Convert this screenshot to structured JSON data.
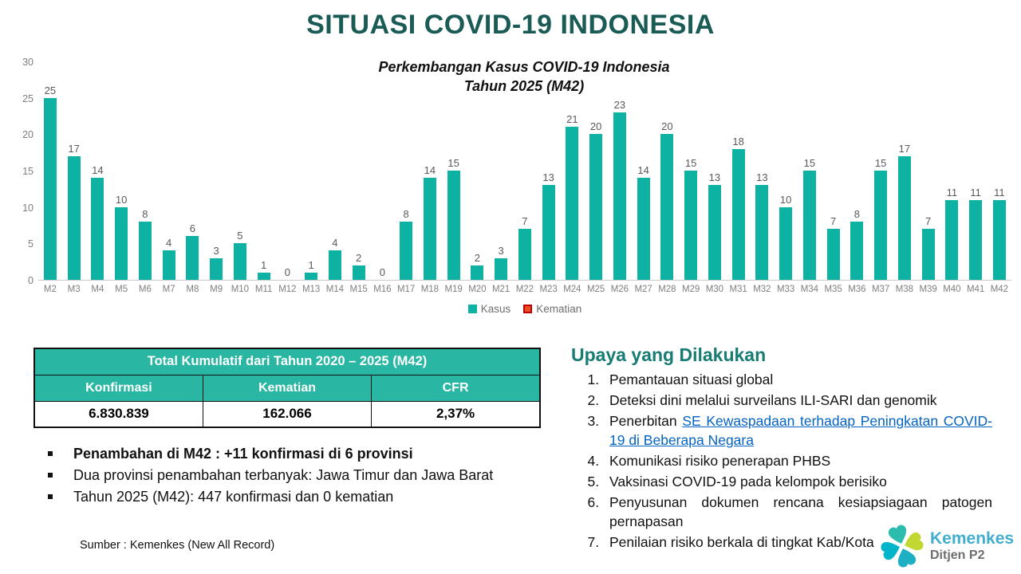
{
  "slide": {
    "title": "SITUASI COVID-19 INDONESIA"
  },
  "chart_data": {
    "type": "bar",
    "title_line1": "Perkembangan Kasus COVID-19 Indonesia",
    "title_line2": "Tahun 2025 (M42)",
    "categories": [
      "M2",
      "M3",
      "M4",
      "M5",
      "M6",
      "M7",
      "M8",
      "M9",
      "M10",
      "M11",
      "M12",
      "M13",
      "M14",
      "M15",
      "M16",
      "M17",
      "M18",
      "M19",
      "M20",
      "M21",
      "M22",
      "M23",
      "M24",
      "M25",
      "M26",
      "M27",
      "M28",
      "M29",
      "M30",
      "M31",
      "M32",
      "M33",
      "M34",
      "M35",
      "M36",
      "M37",
      "M38",
      "M39",
      "M40",
      "M41",
      "M42"
    ],
    "series": [
      {
        "name": "Kasus",
        "color": "#0EB2A2",
        "values": [
          25,
          17,
          14,
          10,
          8,
          4,
          6,
          3,
          5,
          1,
          0,
          1,
          4,
          2,
          0,
          8,
          14,
          15,
          2,
          3,
          7,
          13,
          21,
          20,
          23,
          14,
          20,
          15,
          13,
          18,
          13,
          10,
          15,
          7,
          8,
          15,
          17,
          7,
          11,
          11,
          11
        ]
      },
      {
        "name": "Kematian",
        "color": "#EA4E23",
        "border_color": "#C00000",
        "values": [
          0,
          0,
          0,
          0,
          0,
          0,
          0,
          0,
          0,
          0,
          0,
          0,
          0,
          0,
          0,
          0,
          0,
          0,
          0,
          0,
          0,
          0,
          0,
          0,
          0,
          0,
          0,
          0,
          0,
          0,
          0,
          0,
          0,
          0,
          0,
          0,
          0,
          0,
          0,
          0,
          0
        ]
      }
    ],
    "xlabel": "",
    "ylabel": "",
    "ylim": [
      0,
      30
    ],
    "y_ticks": [
      0,
      5,
      10,
      15,
      20,
      25,
      30
    ],
    "grid": false,
    "legend_position": "bottom"
  },
  "table": {
    "title": "Total Kumulatif dari Tahun 2020 – 2025 (M42)",
    "columns": [
      "Konfirmasi",
      "Kematian",
      "CFR"
    ],
    "values": [
      "6.830.839",
      "162.066",
      "2,37%"
    ]
  },
  "bullets": {
    "items": [
      {
        "text": "Penambahan di M42 : +11 konfirmasi di 6 provinsi",
        "bold": true
      },
      {
        "text": "Dua provinsi penambahan terbanyak: Jawa Timur dan Jawa Barat",
        "bold": false
      },
      {
        "text": "Tahun 2025 (M42): 447 konfirmasi dan 0 kematian",
        "bold": false
      }
    ]
  },
  "source": "Sumber : Kemenkes (New All Record)",
  "upaya": {
    "heading": "Upaya yang Dilakukan",
    "items": [
      {
        "text": "Pemantauan situasi global"
      },
      {
        "text": "Deteksi dini melalui surveilans ILI-SARI dan genomik"
      },
      {
        "prefix": "Penerbitan ",
        "link": "SE Kewaspadaan terhadap Peningkatan COVID-19 di Beberapa Negara"
      },
      {
        "text": "Komunikasi risiko penerapan PHBS"
      },
      {
        "text": "Vaksinasi COVID-19 pada kelompok berisiko"
      },
      {
        "text": "Penyusunan dokumen rencana kesiapsiagaan patogen pernapasan"
      },
      {
        "text": "Penilaian risiko berkala di tingkat Kab/Kota"
      }
    ]
  },
  "logo": {
    "name": "Kemenkes",
    "sub": "Ditjen P2"
  },
  "colors": {
    "title": "#1A5B55",
    "bar_teal": "#0EB2A2",
    "table_header": "#29B6A3",
    "kematian_fill": "#EA4E23",
    "kematian_border": "#C00000",
    "upaya_heading": "#177C74",
    "link_blue": "#0563C1",
    "logo_blue": "#41AECD",
    "logo_gray": "#6D6E71"
  }
}
